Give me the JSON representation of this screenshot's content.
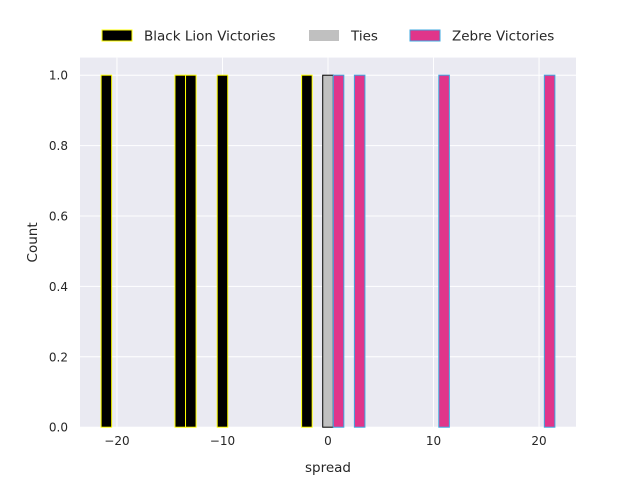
{
  "chart_data": {
    "type": "bar",
    "xlabel": "spread",
    "ylabel": "Count",
    "xlim": [
      -23.5,
      23.5
    ],
    "ylim": [
      0,
      1.05
    ],
    "xticks": [
      -20,
      -10,
      0,
      10,
      20
    ],
    "xtick_labels": [
      "−20",
      "−10",
      "0",
      "10",
      "20"
    ],
    "yticks": [
      0.0,
      0.2,
      0.4,
      0.6,
      0.8,
      1.0
    ],
    "ytick_labels": [
      "0.0",
      "0.2",
      "0.4",
      "0.6",
      "0.8",
      "1.0"
    ],
    "grid": true,
    "legend_placement": "top-center, outside",
    "bin_width": 1.0,
    "series": [
      {
        "name": "Black Lion Victories",
        "fill": "#000000",
        "edge": "#ffff00",
        "bins": [
          [
            -21.5,
            1
          ],
          [
            -14.5,
            1
          ],
          [
            -13.5,
            1
          ],
          [
            -10.5,
            1
          ],
          [
            -2.5,
            1
          ]
        ]
      },
      {
        "name": "Ties",
        "fill": "#c0c0c0",
        "edge": "#000000",
        "bins": [
          [
            -0.5,
            1
          ]
        ]
      },
      {
        "name": "Zebre Victories",
        "fill": "#e0358a",
        "edge": "#3da8e0",
        "bins": [
          [
            0.5,
            1
          ],
          [
            2.5,
            1
          ],
          [
            10.5,
            1
          ],
          [
            20.5,
            1
          ]
        ]
      }
    ]
  },
  "colors": {
    "plot_background": "#eaeaf2",
    "grid": "#ffffff",
    "text": "#262626"
  }
}
